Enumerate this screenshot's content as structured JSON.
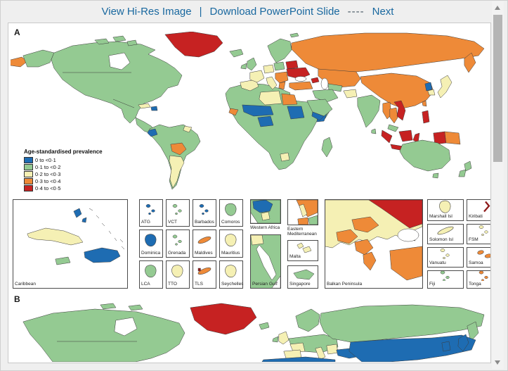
{
  "palette": {
    "blue": "#1e6cb2",
    "green": "#94ca92",
    "yellow": "#f5f0b4",
    "orange": "#ee8a38",
    "red": "#c62222",
    "dark_red": "#8e1b1b",
    "link_blue": "#19689f"
  },
  "toolbar": {
    "view_hires": "View Hi-Res Image",
    "separator": "|",
    "download_ppt": "Download PowerPoint Slide",
    "dashes": "----",
    "next": "Next"
  },
  "figure": {
    "panel_a_label": "A",
    "panel_b_label": "B",
    "legend": {
      "title": "Age-standardised prevalence",
      "items": [
        {
          "label": "0 to <0·1",
          "color": "blue"
        },
        {
          "label": "0·1 to <0·2",
          "color": "green"
        },
        {
          "label": "0·2 to <0·3",
          "color": "yellow"
        },
        {
          "label": "0·3 to <0·4",
          "color": "orange"
        },
        {
          "label": "0·4 to <0·5",
          "color": "red"
        }
      ]
    },
    "insets": {
      "caribbean_label": "Caribbean",
      "western_africa_label": "Western Africa",
      "eastern_mediterranean_label": "Eastern Mediterranean",
      "persian_gulf_label": "Persian Gulf",
      "malta_label": "Malta",
      "singapore_label": "Singapore",
      "balkan_label": "Balkan Peninsula",
      "grid_a": [
        {
          "label": "ATG",
          "color": "blue",
          "shape": "specks"
        },
        {
          "label": "VCT",
          "color": "green",
          "shape": "specks"
        },
        {
          "label": "Barbados",
          "color": "blue",
          "shape": "specks"
        },
        {
          "label": "Comoros",
          "color": "green",
          "shape": "blob"
        },
        {
          "label": "Dominica",
          "color": "blue",
          "shape": "blob"
        },
        {
          "label": "Grenada",
          "color": "green",
          "shape": "specks"
        },
        {
          "label": "Maldives",
          "color": "orange",
          "shape": "elongated"
        },
        {
          "label": "Mauritius",
          "color": "yellow",
          "shape": "blob"
        },
        {
          "label": "LCA",
          "color": "green",
          "shape": "blob"
        },
        {
          "label": "TTO",
          "color": "yellow",
          "shape": "blob"
        },
        {
          "label": "TLS",
          "color": "orange",
          "shape": "elongated",
          "accent": "dark_red"
        },
        {
          "label": "Seychelles",
          "color": "yellow",
          "shape": "blob"
        }
      ],
      "grid_c": [
        {
          "label": "Marshall Isl",
          "color": "yellow",
          "shape": "blob"
        },
        {
          "label": "Kiribati",
          "color": "dark_red",
          "shape": "arc"
        },
        {
          "label": "Solomon Isl",
          "color": "yellow",
          "shape": "elongated"
        },
        {
          "label": "FSM",
          "color": "yellow",
          "shape": "specks"
        },
        {
          "label": "Vanuatu",
          "color": "yellow",
          "shape": "specks"
        },
        {
          "label": "Samoa",
          "color": "orange",
          "shape": "two"
        },
        {
          "label": "Fiji",
          "color": "green",
          "shape": "specks"
        },
        {
          "label": "Tonga",
          "color": "orange",
          "shape": "specks"
        }
      ]
    }
  }
}
